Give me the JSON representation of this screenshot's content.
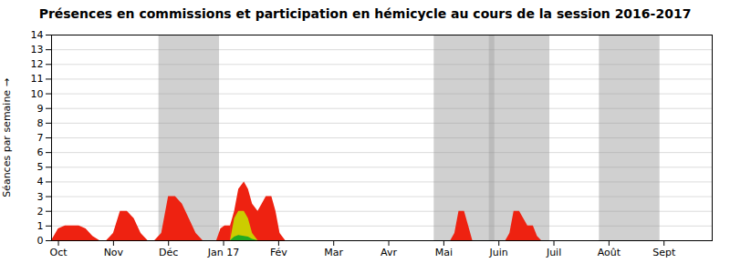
{
  "chart_data": {
    "type": "area",
    "title": "Présences en commissions et participation en hémicycle au cours de la session 2016-2017",
    "ylabel": "Séances par semaine",
    "xlim": [
      0,
      48
    ],
    "xticks": [
      {
        "value": 0.5,
        "label": "Oct"
      },
      {
        "value": 4.5,
        "label": "Nov"
      },
      {
        "value": 8.5,
        "label": "Déc"
      },
      {
        "value": 12.5,
        "label": "Jan 17"
      },
      {
        "value": 16.5,
        "label": "Fév"
      },
      {
        "value": 20.5,
        "label": "Mar"
      },
      {
        "value": 24.5,
        "label": "Avr"
      },
      {
        "value": 28.5,
        "label": "Mai"
      },
      {
        "value": 32.5,
        "label": "Juin"
      },
      {
        "value": 36.5,
        "label": "Juil"
      },
      {
        "value": 40.5,
        "label": "Août"
      },
      {
        "value": 44.5,
        "label": "Sept"
      }
    ],
    "ylim": [
      0,
      14
    ],
    "yticks": [
      0,
      1,
      2,
      3,
      4,
      5,
      6,
      7,
      8,
      9,
      10,
      11,
      12,
      13,
      14
    ],
    "grid": true,
    "bands": [
      {
        "start": 7.8,
        "end": 12.2,
        "color": "#aaaaaa"
      },
      {
        "start": 27.8,
        "end": 32.2,
        "color": "#aaaaaa"
      },
      {
        "start": 31.8,
        "end": 36.2,
        "color": "#aaaaaa"
      },
      {
        "start": 39.8,
        "end": 44.2,
        "color": "#aaaaaa"
      }
    ],
    "series": [
      {
        "color": "#ee2211",
        "x": [
          0.0,
          0.5,
          1.0,
          1.5,
          2.0,
          2.5,
          3.0,
          3.5,
          4.0
        ],
        "values": [
          0.0,
          0.8,
          1.0,
          1.0,
          1.0,
          0.8,
          0.3,
          0.0,
          0.0
        ]
      },
      {
        "color": "#ee2211",
        "x": [
          4.0,
          4.5,
          5.0,
          5.5,
          6.0,
          6.5,
          7.0,
          7.5,
          8.0
        ],
        "values": [
          0.0,
          0.5,
          2.0,
          2.0,
          1.5,
          0.5,
          0.0,
          0.0,
          0.0
        ]
      },
      {
        "color": "#ee2211",
        "x": [
          7.5,
          8.0,
          8.5,
          9.0,
          9.5,
          10.0,
          10.5,
          11.0,
          11.5,
          12.0
        ],
        "values": [
          0.0,
          0.5,
          3.0,
          3.0,
          2.5,
          1.5,
          0.5,
          0.0,
          0.0,
          0.0
        ]
      },
      {
        "color": "#ee2211",
        "x": [
          12.0,
          12.3,
          12.6,
          13.0
        ],
        "values": [
          0.0,
          0.8,
          1.0,
          1.0
        ]
      },
      {
        "color": "#ee2211",
        "x": [
          13.0,
          13.3,
          13.6,
          14.0,
          14.3,
          14.6,
          15.0,
          15.3,
          15.6,
          16.0,
          16.3,
          16.6,
          17.0,
          17.3,
          17.6,
          18.0
        ],
        "values": [
          1.0,
          2.0,
          3.5,
          4.0,
          3.5,
          2.5,
          2.0,
          2.5,
          3.0,
          3.0,
          2.0,
          0.5,
          0.0,
          0.0,
          0.0,
          0.0
        ]
      },
      {
        "color": "#ee2211",
        "x": [
          29.0,
          29.3,
          29.6,
          30.0,
          30.3,
          30.6,
          31.0
        ],
        "values": [
          0.0,
          0.5,
          2.0,
          2.0,
          1.0,
          0.0,
          0.0
        ]
      },
      {
        "color": "#ee2211",
        "x": [
          33.0,
          33.3,
          33.6,
          34.0,
          34.3,
          34.6,
          35.0,
          35.3,
          35.6,
          36.0
        ],
        "values": [
          0.0,
          0.5,
          2.0,
          2.0,
          1.5,
          1.0,
          1.0,
          0.3,
          0.0,
          0.0
        ]
      },
      {
        "color": "#cccc00",
        "x": [
          13.0,
          13.3,
          13.6,
          14.0,
          14.3,
          14.6,
          15.0
        ],
        "values": [
          0.0,
          1.5,
          2.0,
          2.0,
          1.5,
          0.5,
          0.0
        ]
      },
      {
        "color": "#22aa22",
        "x": [
          13.0,
          13.3,
          13.6,
          14.0,
          14.3,
          14.6,
          15.0
        ],
        "values": [
          0.0,
          0.25,
          0.35,
          0.3,
          0.25,
          0.1,
          0.0
        ]
      }
    ]
  }
}
